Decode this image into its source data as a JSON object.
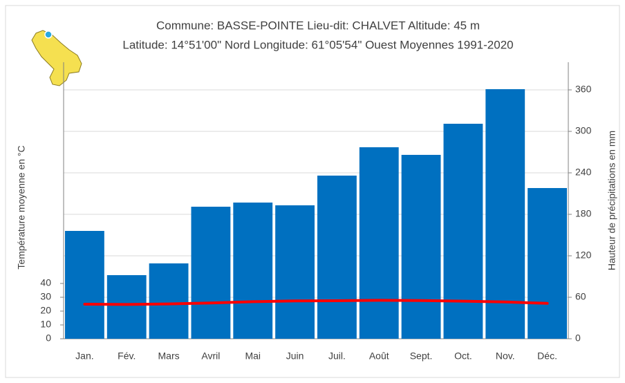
{
  "chart_data": {
    "type": "bar",
    "title": "Commune: BASSE-POINTE Lieu-dit: CHALVET Altitude: 45 m",
    "subtitle": "Latitude: 14°51'00\" Nord Longitude: 61°05'54\" Ouest Moyennes 1991-2020",
    "y_label": "Température moyenne en °C",
    "y2_label": "Hauteur de précipitations en mm",
    "categories": [
      "Jan.",
      "Fév.",
      "Mars",
      "Avril",
      "Mai",
      "Juin",
      "Juil.",
      "Août",
      "Sept.",
      "Oct.",
      "Nov.",
      "Déc."
    ],
    "series": [
      {
        "name": "Précipitations",
        "type": "bar",
        "axis": "y2",
        "color": "#0070c0",
        "values": [
          156,
          92,
          109,
          191,
          197,
          193,
          236,
          277,
          266,
          311,
          361,
          218
        ]
      },
      {
        "name": "Température",
        "type": "line",
        "axis": "y",
        "color": "#ff0000",
        "values": [
          25.0,
          24.8,
          25.2,
          25.9,
          26.8,
          27.4,
          27.5,
          27.8,
          27.6,
          27.2,
          26.6,
          25.6
        ]
      }
    ],
    "ylim": [
      0,
      200
    ],
    "yticks": [
      0,
      10,
      20,
      30,
      40
    ],
    "y2lim": [
      0,
      400
    ],
    "y2ticks": [
      0,
      60,
      120,
      180,
      240,
      300,
      360
    ],
    "grid": true
  }
}
